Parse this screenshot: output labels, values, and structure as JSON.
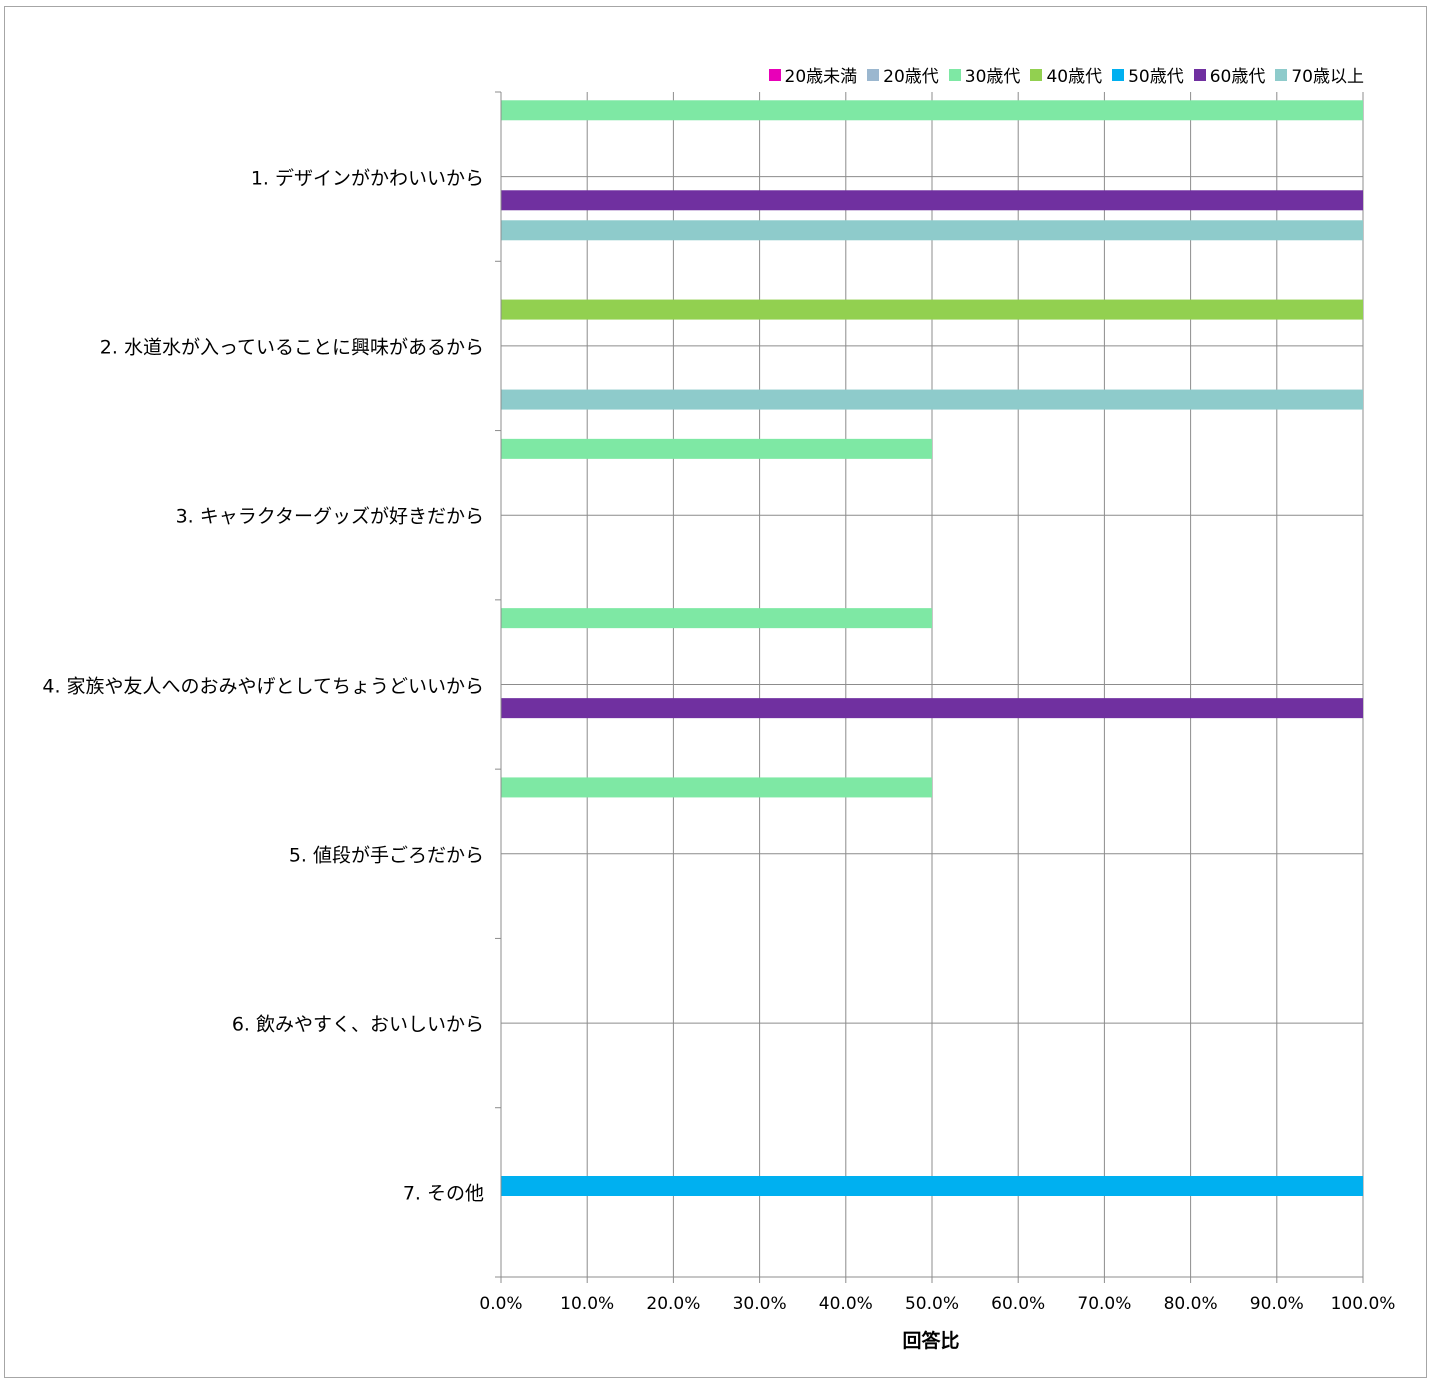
{
  "chart_data": {
    "type": "bar",
    "orientation": "horizontal",
    "title": "",
    "xlabel": "回答比",
    "ylabel": "",
    "xlim": [
      0,
      1
    ],
    "grid": true,
    "legend_position": "top-right",
    "categories": [
      "1. デザインがかわいいから",
      "2. 水道水が入っていることに興味があるから",
      "3. キャラクターグッズが好きだから",
      "4. 家族や友人へのおみやげとしてちょうどいいから",
      "5. 値段が手ごろだから",
      "6. 飲みやすく、おいしいから",
      "7. その他"
    ],
    "x_ticks": [
      "0.0%",
      "10.0%",
      "20.0%",
      "30.0%",
      "40.0%",
      "50.0%",
      "60.0%",
      "70.0%",
      "80.0%",
      "90.0%",
      "100.0%"
    ],
    "series": [
      {
        "name": "20歳未満",
        "color": "#e800b8",
        "values": [
          0,
          0,
          0,
          0,
          0,
          0,
          0
        ]
      },
      {
        "name": "20歳代",
        "color": "#9bb7cf",
        "values": [
          0,
          0,
          0,
          0,
          0,
          0,
          0
        ]
      },
      {
        "name": "30歳代",
        "color": "#7ee8a4",
        "values": [
          1.0,
          0,
          0.5,
          0.5,
          0.5,
          0,
          0
        ]
      },
      {
        "name": "40歳代",
        "color": "#92d050",
        "values": [
          0,
          1.0,
          0,
          0,
          0,
          0,
          0
        ]
      },
      {
        "name": "50歳代",
        "color": "#00b0f0",
        "values": [
          0,
          0,
          0,
          0,
          0,
          0,
          1.0
        ]
      },
      {
        "name": "60歳代",
        "color": "#7030a0",
        "values": [
          1.0,
          0,
          0,
          1.0,
          0,
          0,
          0
        ]
      },
      {
        "name": "70歳以上",
        "color": "#8ecbcb",
        "values": [
          1.0,
          1.0,
          0,
          0,
          0,
          0,
          0
        ]
      }
    ]
  }
}
